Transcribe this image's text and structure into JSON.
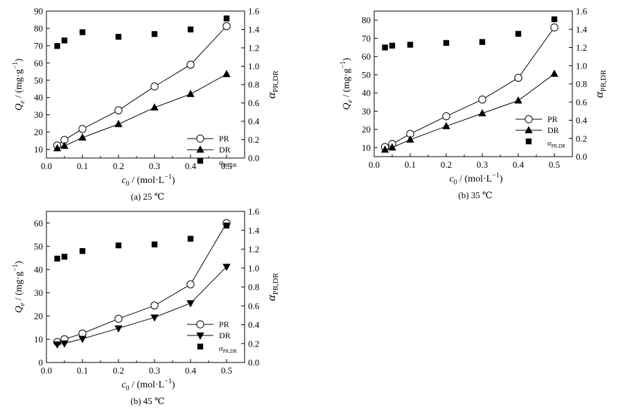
{
  "chart_data": [
    {
      "type": "line",
      "caption": "(a) 25 ℃",
      "xlabel": "c0 / (mol·L−1)",
      "ylabel": "Qe / (mg·g−1)",
      "y2label": "αPR,DR",
      "xlim": [
        0.0,
        0.55
      ],
      "ylim": [
        5,
        90
      ],
      "y2lim": [
        0.0,
        1.6
      ],
      "x_ticks": [
        0.0,
        0.1,
        0.2,
        0.3,
        0.4,
        0.5
      ],
      "y_ticks": [
        10,
        20,
        30,
        40,
        50,
        60,
        70,
        80,
        90
      ],
      "y2_ticks": [
        0.0,
        0.2,
        0.4,
        0.6,
        0.8,
        1.0,
        1.2,
        1.4,
        1.6
      ],
      "legend_position": "bottom-right",
      "x": [
        0.03,
        0.05,
        0.1,
        0.2,
        0.3,
        0.4,
        0.5
      ],
      "series": [
        {
          "name": "PR",
          "marker": "circle-open",
          "axis": "left",
          "values": [
            12.3,
            15.5,
            21.8,
            32.6,
            46.4,
            59.0,
            81.3
          ]
        },
        {
          "name": "DR",
          "marker": "triangle-up",
          "axis": "left",
          "values": [
            10.6,
            12.0,
            16.8,
            24.6,
            34.2,
            42.0,
            53.5
          ]
        },
        {
          "name": "αPR,DR",
          "marker": "square",
          "axis": "right",
          "values": [
            1.22,
            1.28,
            1.37,
            1.32,
            1.35,
            1.4,
            1.52
          ]
        }
      ]
    },
    {
      "type": "line",
      "caption": "(b) 35 ℃",
      "xlabel": "c0 / (mol·L−1)",
      "ylabel": "Qe / (mg·g−1)",
      "y2label": "αPR,DR",
      "xlim": [
        0.0,
        0.55
      ],
      "ylim": [
        5,
        85
      ],
      "y2lim": [
        0.0,
        1.6
      ],
      "x_ticks": [
        0.0,
        0.1,
        0.2,
        0.3,
        0.4,
        0.5
      ],
      "y_ticks": [
        10,
        20,
        30,
        40,
        50,
        60,
        70,
        80
      ],
      "y2_ticks": [
        0.0,
        0.2,
        0.4,
        0.6,
        0.8,
        1.0,
        1.2,
        1.4,
        1.6
      ],
      "legend_position": "bottom-right",
      "x": [
        0.03,
        0.05,
        0.1,
        0.2,
        0.3,
        0.4,
        0.5
      ],
      "series": [
        {
          "name": "PR",
          "marker": "circle-open",
          "axis": "left",
          "values": [
            10.3,
            12.0,
            17.5,
            27.2,
            36.4,
            48.3,
            76.0
          ]
        },
        {
          "name": "DR",
          "marker": "triangle-up",
          "axis": "left",
          "values": [
            8.8,
            10.0,
            14.3,
            21.7,
            28.8,
            35.8,
            50.5
          ]
        },
        {
          "name": "αPR,DR",
          "marker": "square",
          "axis": "right",
          "values": [
            1.2,
            1.22,
            1.23,
            1.25,
            1.26,
            1.35,
            1.51
          ]
        }
      ]
    },
    {
      "type": "line",
      "caption": "(b) 45 ℃",
      "xlabel": "c0 / (mol·L−1)",
      "ylabel": "Qe / (mg·g−1)",
      "y2label": "αPR,DR",
      "xlim": [
        0.0,
        0.55
      ],
      "ylim": [
        0,
        65
      ],
      "y2lim": [
        0.0,
        1.6
      ],
      "x_ticks": [
        0.0,
        0.1,
        0.2,
        0.3,
        0.4,
        0.5
      ],
      "y_ticks": [
        0,
        10,
        20,
        30,
        40,
        50,
        60
      ],
      "y2_ticks": [
        0.0,
        0.2,
        0.4,
        0.6,
        0.8,
        1.0,
        1.2,
        1.4,
        1.6
      ],
      "legend_position": "bottom-right",
      "x": [
        0.03,
        0.05,
        0.1,
        0.2,
        0.3,
        0.4,
        0.5
      ],
      "series": [
        {
          "name": "PR",
          "marker": "circle-open",
          "axis": "left",
          "values": [
            8.8,
            10.0,
            12.5,
            18.8,
            24.5,
            33.6,
            60.0
          ]
        },
        {
          "name": "DR",
          "marker": "triangle-down",
          "axis": "left",
          "values": [
            7.8,
            8.2,
            10.2,
            14.7,
            19.4,
            25.5,
            41.2
          ]
        },
        {
          "name": "αPR,DR",
          "marker": "square",
          "axis": "right",
          "values": [
            1.1,
            1.12,
            1.18,
            1.24,
            1.25,
            1.31,
            1.45
          ]
        }
      ]
    }
  ]
}
